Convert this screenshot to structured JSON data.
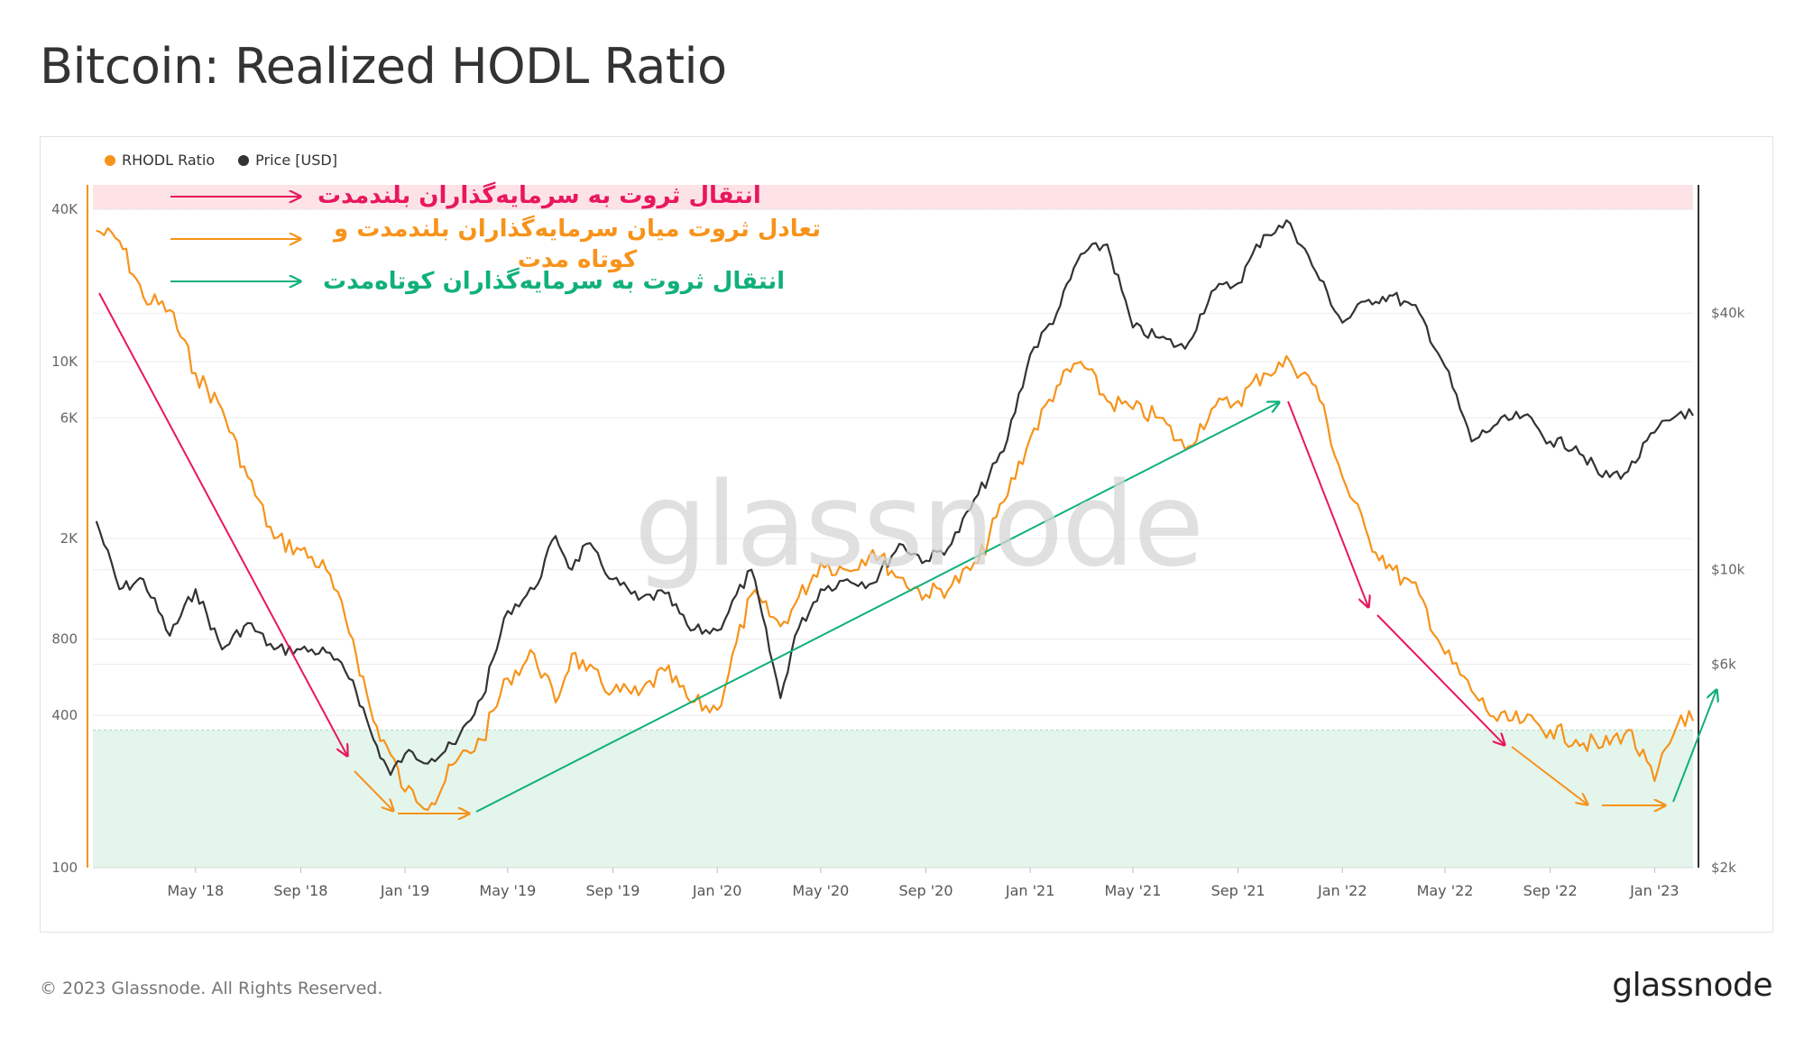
{
  "page": {
    "title": "Bitcoin: Realized HODL Ratio",
    "footer_copyright": "© 2023 Glassnode. All Rights Reserved.",
    "footer_logo": "glassnode",
    "watermark": "glassnode"
  },
  "legend": [
    {
      "label": "RHODL Ratio",
      "color": "#f7931a"
    },
    {
      "label": "Price [USD]",
      "color": "#333333"
    }
  ],
  "annotations": {
    "top_band": "انتقال ثروت به سرمایه‌گذاران بلندمدت",
    "middle": "تعادل ثروت میان سرمایه‌گذاران بلندمدت و کوتاه مدت",
    "bottom_band": "انتقال ثروت به سرمایه‌گذاران کوتاه‌مدت",
    "colors": {
      "pink": "#e8175d",
      "orange": "#f7931a",
      "green": "#10b07a"
    }
  },
  "chart_data": {
    "type": "line",
    "x_axis": {
      "tick_labels": [
        "May '18",
        "Sep '18",
        "Jan '19",
        "May '19",
        "Sep '19",
        "Jan '20",
        "May '20",
        "Sep '20",
        "Jan '21",
        "May '21",
        "Sep '21",
        "Jan '22",
        "May '22",
        "Sep '22",
        "Jan '23"
      ],
      "start": "2018-01-01",
      "end": "2023-02-15"
    },
    "y_left": {
      "scale": "log",
      "tick_labels": [
        "100",
        "400",
        "800",
        "2K",
        "6K",
        "10K",
        "40K"
      ],
      "tick_values": [
        100,
        400,
        800,
        2000,
        6000,
        10000,
        40000
      ],
      "range": [
        100,
        50000
      ]
    },
    "y_right": {
      "scale": "log",
      "tick_labels": [
        "$2k",
        "$6k",
        "$10k",
        "$40k"
      ],
      "tick_values": [
        2000,
        6000,
        10000,
        40000
      ],
      "range": [
        2000,
        80000
      ]
    },
    "bands": [
      {
        "name": "top",
        "from": 40000,
        "to": 50000,
        "color": "#fde3e6"
      },
      {
        "name": "bottom",
        "from": 100,
        "to": 350,
        "color": "#e4f5ec"
      }
    ],
    "series": [
      {
        "name": "RHODL Ratio",
        "axis": "left",
        "color": "#f7931a",
        "x": [
          "2018-01-05",
          "2018-02-01",
          "2018-03-01",
          "2018-04-01",
          "2018-05-01",
          "2018-06-01",
          "2018-07-01",
          "2018-08-01",
          "2018-09-01",
          "2018-10-01",
          "2018-11-01",
          "2018-11-25",
          "2018-12-15",
          "2019-01-01",
          "2019-02-01",
          "2019-03-01",
          "2019-04-01",
          "2019-05-01",
          "2019-06-01",
          "2019-06-26",
          "2019-07-15",
          "2019-08-01",
          "2019-09-01",
          "2019-10-01",
          "2019-11-01",
          "2019-12-01",
          "2020-01-01",
          "2020-02-10",
          "2020-03-15",
          "2020-04-01",
          "2020-05-01",
          "2020-06-01",
          "2020-07-01",
          "2020-08-01",
          "2020-09-01",
          "2020-10-01",
          "2020-11-01",
          "2020-12-01",
          "2021-01-01",
          "2021-02-01",
          "2021-03-01",
          "2021-04-01",
          "2021-05-01",
          "2021-06-01",
          "2021-07-01",
          "2021-08-01",
          "2021-09-01",
          "2021-10-01",
          "2021-11-01",
          "2021-12-01",
          "2022-01-01",
          "2022-02-01",
          "2022-03-01",
          "2022-04-01",
          "2022-05-01",
          "2022-06-01",
          "2022-07-01",
          "2022-08-01",
          "2022-09-01",
          "2022-10-01",
          "2022-11-01",
          "2022-12-01",
          "2023-01-01",
          "2023-02-01",
          "2023-02-15"
        ],
        "values": [
          33000,
          30000,
          18000,
          16000,
          9000,
          6500,
          3500,
          2000,
          1800,
          1500,
          800,
          380,
          280,
          200,
          180,
          260,
          320,
          560,
          700,
          450,
          700,
          600,
          500,
          480,
          600,
          450,
          420,
          1200,
          900,
          1100,
          1600,
          1500,
          1800,
          1400,
          1200,
          1300,
          1600,
          2800,
          5000,
          8000,
          10000,
          7000,
          6500,
          6000,
          4500,
          6500,
          7000,
          9000,
          10000,
          8000,
          3500,
          2000,
          1500,
          1200,
          700,
          500,
          380,
          380,
          350,
          320,
          300,
          350,
          220,
          400,
          380
        ]
      },
      {
        "name": "Price [USD]",
        "axis": "right",
        "color": "#333333",
        "x": [
          "2018-01-05",
          "2018-02-01",
          "2018-03-01",
          "2018-04-01",
          "2018-05-01",
          "2018-06-01",
          "2018-07-01",
          "2018-08-01",
          "2018-09-01",
          "2018-10-01",
          "2018-11-01",
          "2018-11-25",
          "2018-12-15",
          "2019-01-01",
          "2019-02-01",
          "2019-03-01",
          "2019-04-01",
          "2019-05-01",
          "2019-06-01",
          "2019-06-26",
          "2019-07-15",
          "2019-08-01",
          "2019-09-01",
          "2019-10-01",
          "2019-11-01",
          "2019-12-01",
          "2020-01-01",
          "2020-02-10",
          "2020-03-15",
          "2020-04-01",
          "2020-05-01",
          "2020-06-01",
          "2020-07-01",
          "2020-08-01",
          "2020-09-01",
          "2020-10-01",
          "2020-11-01",
          "2020-12-01",
          "2021-01-01",
          "2021-02-01",
          "2021-03-01",
          "2021-04-01",
          "2021-05-01",
          "2021-06-01",
          "2021-07-01",
          "2021-08-01",
          "2021-09-01",
          "2021-10-01",
          "2021-11-01",
          "2021-12-01",
          "2022-01-01",
          "2022-02-01",
          "2022-03-01",
          "2022-04-01",
          "2022-05-01",
          "2022-06-01",
          "2022-07-01",
          "2022-08-01",
          "2022-09-01",
          "2022-10-01",
          "2022-11-01",
          "2022-12-01",
          "2023-01-01",
          "2023-02-01",
          "2023-02-15"
        ],
        "values": [
          13000,
          9000,
          9500,
          7000,
          9000,
          6500,
          7500,
          6500,
          6500,
          6400,
          5500,
          4000,
          3300,
          3700,
          3600,
          3900,
          5000,
          8000,
          9000,
          12000,
          10000,
          11500,
          9500,
          8500,
          8800,
          7200,
          7200,
          10000,
          5000,
          7000,
          9000,
          9500,
          9300,
          11500,
          10500,
          11500,
          15000,
          19000,
          32000,
          40000,
          55000,
          58000,
          37000,
          35000,
          33000,
          45000,
          47000,
          61000,
          65000,
          50000,
          38000,
          43000,
          44000,
          40000,
          30000,
          20000,
          22000,
          23000,
          20000,
          19500,
          16500,
          17000,
          21000,
          23500,
          23000
        ]
      }
    ]
  }
}
